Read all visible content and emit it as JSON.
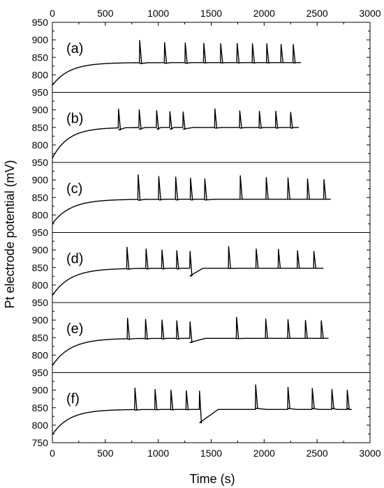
{
  "chart_data": {
    "type": "line",
    "xlabel": "Time (s)",
    "ylabel": "Pt electrode potential (mV)",
    "xlim": [
      0,
      3000
    ],
    "xticks": [
      0,
      500,
      1000,
      1500,
      2000,
      2500,
      3000
    ],
    "ylim": [
      750,
      950
    ],
    "yticks": [
      750,
      800,
      850,
      900,
      950
    ],
    "grid": false,
    "line_color": "#000000",
    "panels": [
      {
        "label": "(a)",
        "baseline_start": 770,
        "baseline_end": 835,
        "tau": 160,
        "spikes": [
          {
            "t": 825,
            "peak": 898,
            "min": 832
          },
          {
            "t": 1060,
            "peak": 892,
            "min": 833
          },
          {
            "t": 1255,
            "peak": 891,
            "min": 833
          },
          {
            "t": 1430,
            "peak": 890,
            "min": 834
          },
          {
            "t": 1590,
            "peak": 889,
            "min": 834
          },
          {
            "t": 1745,
            "peak": 890,
            "min": 834
          },
          {
            "t": 1890,
            "peak": 889,
            "min": 834
          },
          {
            "t": 2025,
            "peak": 889,
            "min": 834
          },
          {
            "t": 2160,
            "peak": 887,
            "min": 835
          },
          {
            "t": 2275,
            "peak": 887,
            "min": 834
          }
        ],
        "end": 2350
      },
      {
        "label": "(b)",
        "baseline_start": 762,
        "baseline_end": 850,
        "tau": 150,
        "spikes": [
          {
            "t": 625,
            "peak": 902,
            "min": 843
          },
          {
            "t": 820,
            "peak": 900,
            "min": 845
          },
          {
            "t": 985,
            "peak": 898,
            "min": 845
          },
          {
            "t": 1110,
            "peak": 895,
            "min": 845
          },
          {
            "t": 1235,
            "peak": 894,
            "min": 845
          },
          {
            "t": 1535,
            "peak": 903,
            "min": 848
          },
          {
            "t": 1770,
            "peak": 897,
            "min": 848
          },
          {
            "t": 1955,
            "peak": 896,
            "min": 848
          },
          {
            "t": 2110,
            "peak": 896,
            "min": 848
          },
          {
            "t": 2250,
            "peak": 893,
            "min": 848
          }
        ],
        "end": 2330
      },
      {
        "label": "(c)",
        "baseline_start": 775,
        "baseline_end": 845,
        "tau": 170,
        "spikes": [
          {
            "t": 810,
            "peak": 915,
            "min": 842
          },
          {
            "t": 1005,
            "peak": 910,
            "min": 843
          },
          {
            "t": 1165,
            "peak": 908,
            "min": 843
          },
          {
            "t": 1305,
            "peak": 905,
            "min": 843
          },
          {
            "t": 1440,
            "peak": 903,
            "min": 843
          },
          {
            "t": 1775,
            "peak": 912,
            "min": 845
          },
          {
            "t": 2020,
            "peak": 907,
            "min": 845
          },
          {
            "t": 2225,
            "peak": 906,
            "min": 845
          },
          {
            "t": 2410,
            "peak": 903,
            "min": 845
          },
          {
            "t": 2565,
            "peak": 901,
            "min": 845
          }
        ],
        "end": 2630
      },
      {
        "label": "(d)",
        "baseline_start": 770,
        "baseline_end": 848,
        "tau": 170,
        "spikes": [
          {
            "t": 705,
            "peak": 908,
            "min": 845
          },
          {
            "t": 885,
            "peak": 903,
            "min": 846
          },
          {
            "t": 1035,
            "peak": 900,
            "min": 846
          },
          {
            "t": 1175,
            "peak": 898,
            "min": 846
          },
          {
            "t": 1300,
            "peak": 896,
            "min": 826
          },
          {
            "t": 1665,
            "peak": 910,
            "min": 847
          },
          {
            "t": 1925,
            "peak": 903,
            "min": 848
          },
          {
            "t": 2135,
            "peak": 902,
            "min": 848
          },
          {
            "t": 2315,
            "peak": 898,
            "min": 848
          },
          {
            "t": 2470,
            "peak": 896,
            "min": 848
          }
        ],
        "end": 2560
      },
      {
        "label": "(e)",
        "baseline_start": 770,
        "baseline_end": 848,
        "tau": 170,
        "spikes": [
          {
            "t": 710,
            "peak": 905,
            "min": 845
          },
          {
            "t": 880,
            "peak": 902,
            "min": 846
          },
          {
            "t": 1035,
            "peak": 900,
            "min": 846
          },
          {
            "t": 1175,
            "peak": 898,
            "min": 846
          },
          {
            "t": 1300,
            "peak": 895,
            "min": 836
          },
          {
            "t": 1740,
            "peak": 908,
            "min": 847
          },
          {
            "t": 2015,
            "peak": 903,
            "min": 848
          },
          {
            "t": 2225,
            "peak": 901,
            "min": 848
          },
          {
            "t": 2390,
            "peak": 899,
            "min": 848
          },
          {
            "t": 2540,
            "peak": 898,
            "min": 848
          }
        ],
        "end": 2610
      },
      {
        "label": "(f)",
        "baseline_start": 773,
        "baseline_end": 845,
        "tau": 160,
        "spikes": [
          {
            "t": 780,
            "peak": 906,
            "min": 843
          },
          {
            "t": 970,
            "peak": 902,
            "min": 844
          },
          {
            "t": 1120,
            "peak": 900,
            "min": 844
          },
          {
            "t": 1265,
            "peak": 898,
            "min": 844
          },
          {
            "t": 1390,
            "peak": 897,
            "min": 807
          },
          {
            "t": 1920,
            "peak": 915,
            "min": 848
          },
          {
            "t": 2225,
            "peak": 908,
            "min": 848
          },
          {
            "t": 2455,
            "peak": 905,
            "min": 848
          },
          {
            "t": 2640,
            "peak": 902,
            "min": 848
          },
          {
            "t": 2785,
            "peak": 900,
            "min": 848
          }
        ],
        "end": 2830
      }
    ]
  }
}
